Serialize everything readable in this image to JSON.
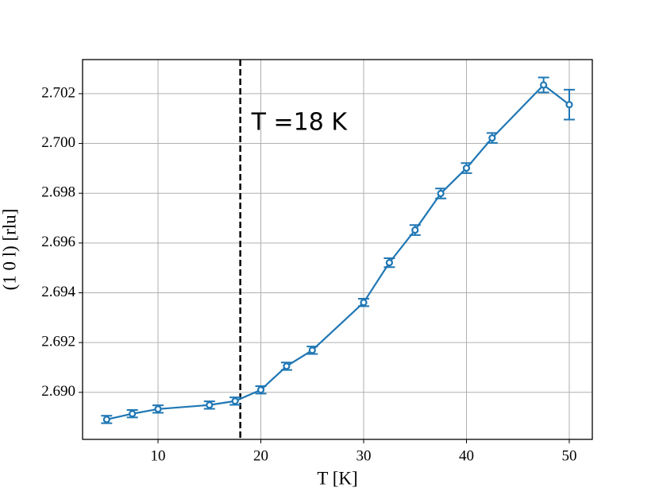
{
  "chart_data": {
    "type": "errorbar-line",
    "x_label": "T [K]",
    "y_label": "(1 0 l) [rlu]",
    "annotation": "T =18 K",
    "vline": 18,
    "x": [
      5,
      7.5,
      10,
      15,
      17.5,
      20,
      22.5,
      25,
      30,
      32.5,
      35,
      37.5,
      40,
      42.5,
      47.5,
      50
    ],
    "values": [
      2.68891,
      2.68914,
      2.68933,
      2.68949,
      2.68965,
      2.6901,
      2.69105,
      2.69169,
      2.69361,
      2.69521,
      2.69652,
      2.69799,
      2.69901,
      2.70022,
      2.70235,
      2.70156
    ],
    "errors": [
      0.00015,
      0.00015,
      0.00015,
      0.00015,
      0.00015,
      0.00015,
      0.00015,
      0.00015,
      0.00015,
      0.00018,
      0.0002,
      0.0002,
      0.0002,
      0.0002,
      0.0003,
      0.0006
    ],
    "color": "#1f77b4",
    "xlim": [
      2.66,
      52.24
    ],
    "ylim": [
      2.68811,
      2.70337
    ],
    "xticks": [
      10,
      20,
      30,
      40,
      50
    ],
    "yticks": [
      {
        "value": 2.69,
        "label": "2.690"
      },
      {
        "value": 2.692,
        "label": "2.692"
      },
      {
        "value": 2.694,
        "label": "2.694"
      },
      {
        "value": 2.696,
        "label": "2.696"
      },
      {
        "value": 2.698,
        "label": "2.698"
      },
      {
        "value": 2.7,
        "label": "2.700"
      },
      {
        "value": 2.702,
        "label": "2.702"
      }
    ],
    "grid": true
  }
}
